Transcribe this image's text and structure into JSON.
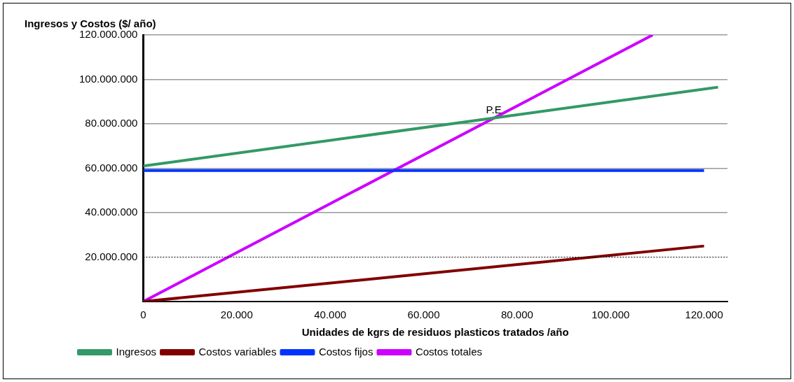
{
  "chart_data": {
    "type": "line",
    "ylabel": "Ingresos y Costos ($/ año)",
    "xlabel": "Unidades de kgrs de residuos plasticos tratados /año",
    "xlim": [
      0,
      125000
    ],
    "xticks": [
      {
        "value": 0,
        "label": "0"
      },
      {
        "value": 20000,
        "label": "20.000"
      },
      {
        "value": 40000,
        "label": "40.000"
      },
      {
        "value": 60000,
        "label": "60.000"
      },
      {
        "value": 80000,
        "label": "80.000"
      },
      {
        "value": 100000,
        "label": "100.000"
      },
      {
        "value": 120000,
        "label": "120.000"
      }
    ],
    "ylim": [
      0,
      120000000
    ],
    "yticks": [
      {
        "value": 20000000,
        "label": "20.000.000"
      },
      {
        "value": 40000000,
        "label": "40.000.000"
      },
      {
        "value": 60000000,
        "label": "60.000.000"
      },
      {
        "value": 80000000,
        "label": "80.000.000"
      },
      {
        "value": 100000000,
        "label": "100.000.000"
      },
      {
        "value": 120000000,
        "label": "120.000.000"
      }
    ],
    "series": [
      {
        "name": "Ingresos",
        "color": "#339966",
        "x": [
          0,
          123000
        ],
        "values": [
          61000000,
          96500000
        ]
      },
      {
        "name": "Costos variables",
        "color": "#800000",
        "x": [
          0,
          120000
        ],
        "values": [
          0,
          25000000
        ]
      },
      {
        "name": "Costos fijos",
        "color": "#0033ff",
        "x": [
          0,
          120000
        ],
        "values": [
          59000000,
          59000000
        ]
      },
      {
        "name": "Costos totales",
        "color": "#cc00ff",
        "x": [
          0,
          109000
        ],
        "values": [
          0,
          120000000
        ]
      }
    ],
    "ref_lines": [
      {
        "axis": "y",
        "value": 20000000,
        "label": null,
        "color": "#000000",
        "line_style": "dotted"
      }
    ],
    "annotations": [
      {
        "text": "P.E",
        "x": 75000,
        "y": 84000000
      }
    ],
    "grid": "y",
    "legend": "bottom left",
    "marker": "none",
    "line_style": "solid"
  }
}
